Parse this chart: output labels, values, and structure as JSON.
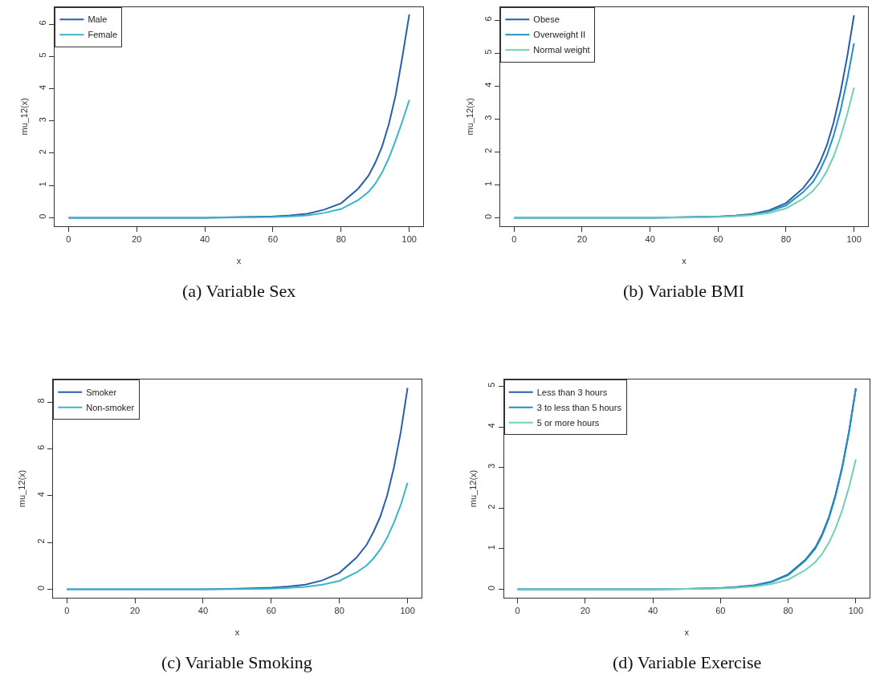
{
  "chart_data": [
    {
      "type": "line",
      "xlabel": "x",
      "ylabel": "mu_12(x)",
      "annotations": [
        "(a) Variable Sex"
      ],
      "xlim": [
        -4,
        104
      ],
      "ylim": [
        -0.26,
        6.53
      ],
      "xticks": [
        0,
        20,
        40,
        60,
        80,
        100
      ],
      "yticks": [
        0,
        1,
        2,
        3,
        4,
        5,
        6
      ],
      "legend": "top left",
      "x": [
        0,
        20,
        40,
        50,
        60,
        65,
        70,
        75,
        80,
        85,
        88,
        90,
        92,
        94,
        96,
        98,
        100
      ],
      "series": [
        {
          "name": "Male",
          "color": "#2b5fad",
          "values": [
            0,
            0,
            0,
            0.02,
            0.04,
            0.07,
            0.12,
            0.25,
            0.45,
            0.9,
            1.3,
            1.7,
            2.2,
            2.9,
            3.8,
            5.0,
            6.3
          ]
        },
        {
          "name": "Female",
          "color": "#3bb5c8",
          "values": [
            0,
            0,
            0,
            0.01,
            0.02,
            0.04,
            0.07,
            0.15,
            0.27,
            0.55,
            0.8,
            1.05,
            1.4,
            1.85,
            2.4,
            3.0,
            3.65
          ]
        }
      ]
    },
    {
      "type": "line",
      "xlabel": "x",
      "ylabel": "mu_12(x)",
      "annotations": [
        "(b) Variable BMI"
      ],
      "xlim": [
        -4,
        104
      ],
      "ylim": [
        -0.25,
        6.4
      ],
      "xticks": [
        0,
        20,
        40,
        60,
        80,
        100
      ],
      "yticks": [
        0,
        1,
        2,
        3,
        4,
        5,
        6
      ],
      "legend": "top left",
      "x": [
        0,
        20,
        40,
        50,
        60,
        65,
        70,
        75,
        80,
        85,
        88,
        90,
        92,
        94,
        96,
        98,
        100
      ],
      "series": [
        {
          "name": "Obese",
          "color": "#2a5caa",
          "values": [
            0,
            0,
            0,
            0.02,
            0.04,
            0.07,
            0.12,
            0.23,
            0.45,
            0.9,
            1.3,
            1.7,
            2.2,
            2.9,
            3.8,
            4.9,
            6.15
          ]
        },
        {
          "name": "Overweight II",
          "color": "#1f8fc4",
          "values": [
            0,
            0,
            0,
            0.02,
            0.04,
            0.06,
            0.1,
            0.2,
            0.38,
            0.78,
            1.1,
            1.45,
            1.9,
            2.5,
            3.25,
            4.2,
            5.3
          ]
        },
        {
          "name": "Normal weight",
          "color": "#6fcfb8",
          "values": [
            0,
            0,
            0,
            0.01,
            0.03,
            0.05,
            0.08,
            0.15,
            0.29,
            0.58,
            0.83,
            1.08,
            1.42,
            1.87,
            2.45,
            3.15,
            3.95
          ]
        }
      ]
    },
    {
      "type": "line",
      "xlabel": "x",
      "ylabel": "mu_12(x)",
      "annotations": [
        "(c) Variable Smoking"
      ],
      "xlim": [
        -4,
        104
      ],
      "ylim": [
        -0.35,
        8.95
      ],
      "xticks": [
        0,
        20,
        40,
        60,
        80,
        100
      ],
      "yticks": [
        0,
        2,
        4,
        6,
        8
      ],
      "legend": "top left",
      "x": [
        0,
        20,
        40,
        50,
        60,
        65,
        70,
        75,
        80,
        85,
        88,
        90,
        92,
        94,
        96,
        98,
        100
      ],
      "series": [
        {
          "name": "Smoker",
          "color": "#2b5fad",
          "values": [
            0,
            0,
            0,
            0.03,
            0.07,
            0.12,
            0.2,
            0.38,
            0.7,
            1.35,
            1.9,
            2.45,
            3.1,
            4.0,
            5.2,
            6.7,
            8.6
          ]
        },
        {
          "name": "Non-smoker",
          "color": "#3bb5c8",
          "values": [
            0,
            0,
            0,
            0.01,
            0.03,
            0.06,
            0.1,
            0.2,
            0.36,
            0.72,
            1.02,
            1.32,
            1.7,
            2.2,
            2.85,
            3.6,
            4.55
          ]
        }
      ]
    },
    {
      "type": "line",
      "xlabel": "x",
      "ylabel": "mu_12(x)",
      "annotations": [
        "(d) Variable Exercise"
      ],
      "xlim": [
        -4,
        104
      ],
      "ylim": [
        -0.2,
        5.16
      ],
      "xticks": [
        0,
        20,
        40,
        60,
        80,
        100
      ],
      "yticks": [
        0,
        1,
        2,
        3,
        4,
        5
      ],
      "legend": "top left",
      "x": [
        0,
        20,
        40,
        50,
        60,
        65,
        70,
        75,
        80,
        85,
        88,
        90,
        92,
        94,
        96,
        98,
        100
      ],
      "series": [
        {
          "name": "Less than 3 hours",
          "color": "#2a5caa",
          "values": [
            0,
            0,
            0,
            0.01,
            0.03,
            0.06,
            0.1,
            0.19,
            0.37,
            0.72,
            1.03,
            1.35,
            1.77,
            2.33,
            3.03,
            3.9,
            4.95
          ]
        },
        {
          "name": "3 to less than 5 hours",
          "color": "#1f8fc4",
          "values": [
            0,
            0,
            0,
            0.01,
            0.03,
            0.05,
            0.09,
            0.18,
            0.35,
            0.7,
            1.0,
            1.32,
            1.74,
            2.3,
            3.0,
            3.88,
            4.93
          ]
        },
        {
          "name": "5 or more hours",
          "color": "#6fcfb8",
          "values": [
            0,
            0,
            0,
            0.01,
            0.02,
            0.04,
            0.07,
            0.13,
            0.24,
            0.47,
            0.67,
            0.87,
            1.14,
            1.5,
            1.96,
            2.52,
            3.2
          ]
        }
      ]
    }
  ]
}
